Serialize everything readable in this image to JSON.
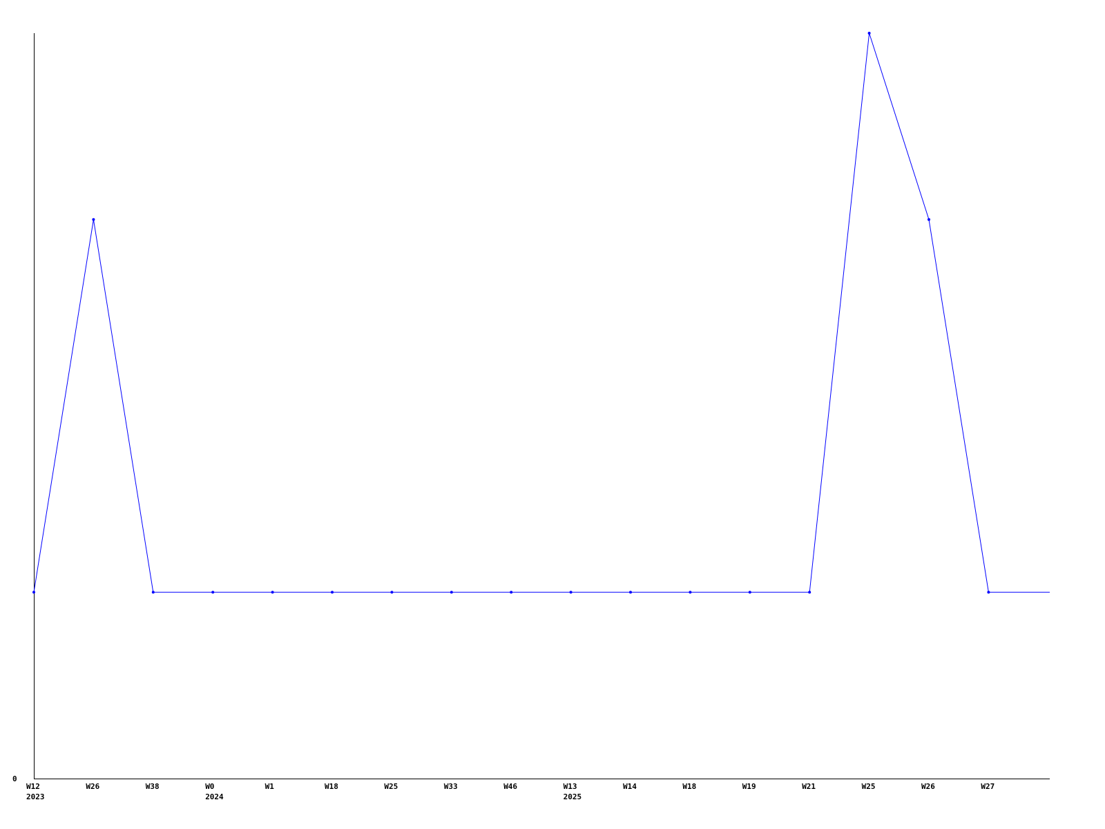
{
  "chart_data": {
    "type": "line",
    "title": "",
    "xlabel": "",
    "ylabel": "",
    "y_tick_labels": [
      "0"
    ],
    "ylim": [
      0,
      4
    ],
    "grid": false,
    "line_color": "#0000ff",
    "categories": [
      "W12",
      "W26",
      "W38",
      "W0",
      "W1",
      "W18",
      "W25",
      "W33",
      "W46",
      "W13",
      "W14",
      "W18",
      "W19",
      "W21",
      "W25",
      "W26",
      "W27"
    ],
    "year_labels": [
      {
        "category_index": 0,
        "label": "2023"
      },
      {
        "category_index": 3,
        "label": "2024"
      },
      {
        "category_index": 9,
        "label": "2025"
      }
    ],
    "series": [
      {
        "values": [
          1,
          3,
          1,
          1,
          1,
          1,
          1,
          1,
          1,
          1,
          1,
          1,
          1,
          1,
          4,
          3,
          1
        ],
        "trailing_value": 1
      }
    ]
  }
}
